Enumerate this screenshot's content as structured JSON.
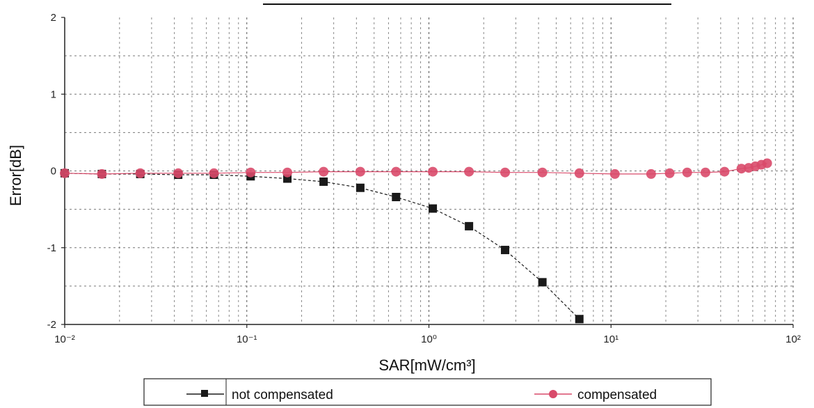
{
  "chart_data": {
    "type": "scatter",
    "title": "",
    "xlabel": "SAR[mW/cm³]",
    "ylabel": "Error[dB]",
    "x_scale": "log",
    "xlim": [
      0.01,
      100
    ],
    "ylim": [
      -2,
      2
    ],
    "x_tick_labels": [
      "10⁻²",
      "10⁻¹",
      "10⁰",
      "10¹",
      "10²"
    ],
    "y_tick_labels": [
      "2",
      "1",
      "0",
      "-1",
      "-2"
    ],
    "y_ticks": [
      2,
      1,
      0,
      -1,
      -2
    ],
    "grid": true,
    "legend_position": "bottom",
    "series": [
      {
        "name": "not compensated",
        "color": "#1a1a1a",
        "marker": "square",
        "line_style": "dashed",
        "x": [
          0.01,
          0.016,
          0.026,
          0.042,
          0.066,
          0.105,
          0.167,
          0.264,
          0.42,
          0.66,
          1.05,
          1.66,
          2.62,
          4.2,
          6.7
        ],
        "y": [
          -0.03,
          -0.04,
          -0.04,
          -0.05,
          -0.05,
          -0.07,
          -0.1,
          -0.14,
          -0.22,
          -0.34,
          -0.49,
          -0.72,
          -1.03,
          -1.45,
          -1.93
        ]
      },
      {
        "name": "compensated",
        "color": "#d94a6a",
        "marker": "circle",
        "line_style": "solid",
        "x": [
          0.01,
          0.016,
          0.026,
          0.042,
          0.066,
          0.105,
          0.167,
          0.264,
          0.42,
          0.66,
          1.05,
          1.66,
          2.62,
          4.2,
          6.7,
          10.5,
          16.6,
          21,
          26.2,
          33,
          42,
          52,
          57,
          62,
          67,
          72
        ],
        "y": [
          -0.03,
          -0.04,
          -0.03,
          -0.03,
          -0.03,
          -0.02,
          -0.02,
          -0.01,
          -0.01,
          -0.01,
          -0.01,
          -0.01,
          -0.02,
          -0.02,
          -0.03,
          -0.04,
          -0.04,
          -0.03,
          -0.02,
          -0.02,
          -0.01,
          0.03,
          0.04,
          0.06,
          0.08,
          0.1
        ]
      }
    ]
  }
}
